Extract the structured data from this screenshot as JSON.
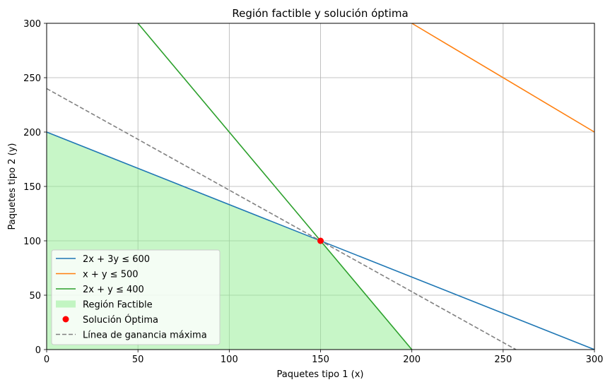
{
  "chart_data": {
    "type": "line",
    "title": "Región factible y solución óptima",
    "xlabel": "Paquetes tipo 1 (x)",
    "ylabel": "Paquetes tipo 2 (y)",
    "xlim": [
      0,
      300
    ],
    "ylim": [
      0,
      300
    ],
    "xticks": [
      0,
      50,
      100,
      150,
      200,
      250,
      300
    ],
    "yticks": [
      0,
      50,
      100,
      150,
      200,
      250,
      300
    ],
    "grid": true,
    "legend_position": "lower-left",
    "series": [
      {
        "name": "2x + 3y ≤ 600",
        "kind": "line",
        "color": "#1f77b4",
        "dash": "solid",
        "points": [
          [
            0,
            200
          ],
          [
            300,
            0
          ]
        ]
      },
      {
        "name": "x + y ≤ 500",
        "kind": "line",
        "color": "#ff7f0e",
        "dash": "solid",
        "points": [
          [
            200,
            300
          ],
          [
            300,
            200
          ]
        ]
      },
      {
        "name": "2x + y ≤ 400",
        "kind": "line",
        "color": "#2ca02c",
        "dash": "solid",
        "points": [
          [
            50,
            300
          ],
          [
            200,
            0
          ]
        ]
      },
      {
        "name": "Región Factible",
        "kind": "area",
        "color": "#90ee90",
        "points": [
          [
            0,
            0
          ],
          [
            0,
            200
          ],
          [
            150,
            100
          ],
          [
            200,
            0
          ]
        ]
      },
      {
        "name": "Solución Óptima",
        "kind": "point",
        "color": "#ff0000",
        "points": [
          [
            150,
            100
          ]
        ]
      },
      {
        "name": "Línea de ganancia máxima",
        "kind": "line",
        "color": "#808080",
        "dash": "dashed",
        "points": [
          [
            0,
            240
          ],
          [
            257,
            0
          ]
        ]
      }
    ]
  }
}
